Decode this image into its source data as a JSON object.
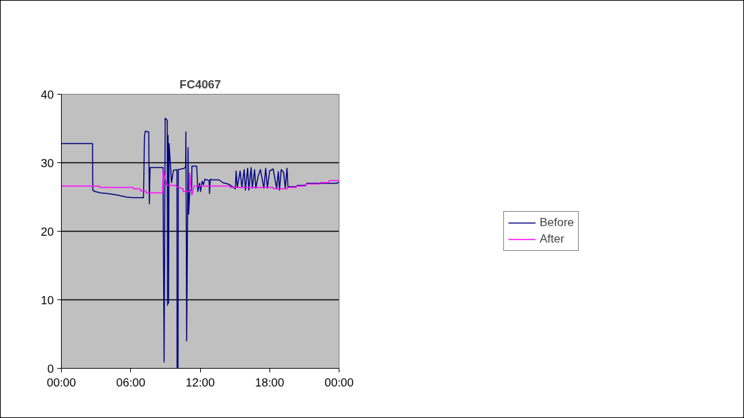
{
  "chart_data": {
    "type": "line",
    "title": "FC4067",
    "xlim": [
      0,
      24
    ],
    "xticks": [
      {
        "value": 0,
        "label": "00:00"
      },
      {
        "value": 6,
        "label": "06:00"
      },
      {
        "value": 12,
        "label": "12:00"
      },
      {
        "value": 18,
        "label": "18:00"
      },
      {
        "value": 24,
        "label": "00:00"
      }
    ],
    "ylim": [
      0,
      40
    ],
    "yticks": [
      0,
      10,
      20,
      30,
      40
    ],
    "grid": "y",
    "legend": "right",
    "marker": "none",
    "line_style": "solid",
    "series": [
      {
        "name": "Before",
        "color": "#000080",
        "x": [
          0,
          2.69,
          2.72,
          2.9,
          3.4,
          4.0,
          4.8,
          5.6,
          6.2,
          7.1,
          7.18,
          7.25,
          7.55,
          7.6,
          7.67,
          8.78,
          8.88,
          8.97,
          9.15,
          9.18,
          9.22,
          9.26,
          9.31,
          9.52,
          9.68,
          9.99,
          10.0,
          10.08,
          10.11,
          10.64,
          10.74,
          10.76,
          10.83,
          10.95,
          11.0,
          11.1,
          11.26,
          11.28,
          11.7,
          11.79,
          11.94,
          12.03,
          12.16,
          12.28,
          12.4,
          12.77,
          12.8,
          12.87,
          13.02,
          13.64,
          13.95,
          14.41,
          14.72,
          15.03,
          15.1,
          15.2,
          15.45,
          15.6,
          15.8,
          15.9,
          16.1,
          16.2,
          16.4,
          16.5,
          16.7,
          16.8,
          17.0,
          17.2,
          17.5,
          17.66,
          17.8,
          18.0,
          18.3,
          18.6,
          18.75,
          18.85,
          19.0,
          19.2,
          19.35,
          19.5,
          19.58,
          20.3,
          20.4,
          21.1,
          21.2,
          23.8,
          24
        ],
        "values": [
          32.8,
          32.8,
          26.0,
          25.8,
          25.6,
          25.5,
          25.3,
          25.0,
          24.9,
          24.9,
          33.8,
          34.6,
          34.5,
          24.0,
          29.3,
          29.3,
          0.9,
          36.5,
          36.2,
          9.2,
          34.0,
          9.5,
          32.8,
          27.1,
          28.9,
          29.0,
          0,
          0,
          29.0,
          29.2,
          29.5,
          34.5,
          4.0,
          32.2,
          22.5,
          26.0,
          26.0,
          29.5,
          29.5,
          25.8,
          27.0,
          25.8,
          27.3,
          26.8,
          27.6,
          27.4,
          25.5,
          27.6,
          27.5,
          27.5,
          27.1,
          26.9,
          26.6,
          26.2,
          28.8,
          26.4,
          28.8,
          26.4,
          29.0,
          26.0,
          29.2,
          26.0,
          29.3,
          26.3,
          29.0,
          26.3,
          28.0,
          29.0,
          26.3,
          29.2,
          26.3,
          28.8,
          29.1,
          26.3,
          28.7,
          26.0,
          29.0,
          28.6,
          26.3,
          29.2,
          26.5,
          26.5,
          26.7,
          26.7,
          27.0,
          27.0,
          27.2
        ]
      },
      {
        "name": "After",
        "color": "#ff00ff",
        "x": [
          0,
          3.28,
          3.3,
          6.2,
          6.25,
          6.8,
          6.85,
          7.3,
          7.35,
          8.75,
          8.8,
          9.06,
          9.1,
          9.9,
          9.95,
          10.5,
          10.55,
          11.07,
          11.1,
          11.2,
          11.28,
          11.47,
          14.57,
          14.6,
          18.3,
          18.35,
          19.52,
          19.55,
          20.3,
          20.35,
          21.1,
          21.15,
          22.3,
          22.35,
          23.1,
          23.15,
          24
        ],
        "values": [
          26.6,
          26.6,
          26.4,
          26.4,
          26.2,
          26.2,
          25.9,
          25.9,
          25.6,
          25.6,
          29.0,
          27.0,
          26.7,
          26.7,
          26.5,
          26.2,
          25.8,
          25.8,
          28.5,
          26.5,
          25.3,
          26.6,
          26.6,
          26.4,
          26.4,
          26.2,
          26.2,
          26.4,
          26.4,
          26.6,
          26.6,
          26.9,
          26.9,
          27.1,
          27.1,
          27.4,
          27.4
        ]
      }
    ]
  }
}
